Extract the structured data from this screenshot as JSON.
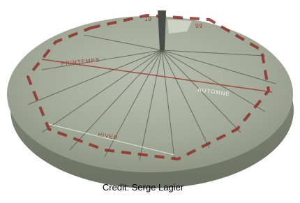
{
  "image": {
    "numbers": [
      "19",
      "99"
    ],
    "dial_labels": [
      "PRINTEMPS",
      "AUTOMNE",
      "HIVER"
    ]
  },
  "caption": "Credit: Serge Lagier"
}
